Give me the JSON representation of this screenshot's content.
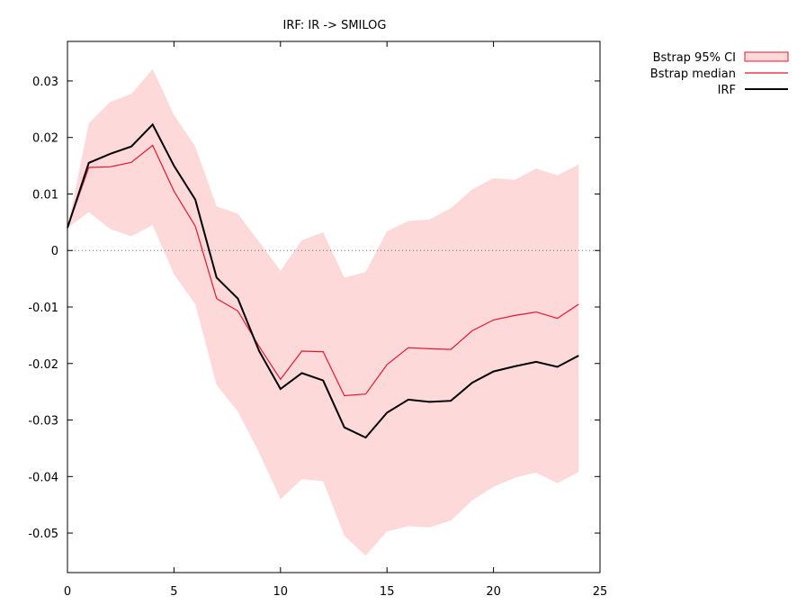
{
  "chart_data": {
    "type": "line",
    "title": "IRF: IR -> SMILOG",
    "xlabel": "",
    "ylabel": "",
    "xlim": [
      0,
      25
    ],
    "ylim": [
      -0.057,
      0.037
    ],
    "x_ticks": [
      0,
      5,
      10,
      15,
      20,
      25
    ],
    "y_ticks": [
      0.03,
      0.02,
      0.01,
      0,
      -0.01,
      -0.02,
      -0.03,
      -0.04,
      -0.05
    ],
    "y_tick_labels": [
      "0.03",
      "0.02",
      "0.01",
      "0",
      "-0.01",
      "-0.02",
      "-0.03",
      "-0.04",
      "-0.05"
    ],
    "zero_line": true,
    "legend_position": "outside-top-right",
    "x": [
      0,
      1,
      2,
      3,
      4,
      5,
      6,
      7,
      8,
      9,
      10,
      11,
      12,
      13,
      14,
      15,
      16,
      17,
      18,
      19,
      20,
      21,
      22,
      23,
      24
    ],
    "series": [
      {
        "name": "Bstrap 95% CI",
        "kind": "band",
        "color": "#fdd9d9",
        "edge_color": "#e8172d",
        "upper": [
          0.004,
          0.0225,
          0.0263,
          0.0277,
          0.0321,
          0.024,
          0.0184,
          0.0078,
          0.0065,
          0.0015,
          -0.0036,
          0.0018,
          0.0032,
          -0.0048,
          -0.0038,
          0.0034,
          0.0052,
          0.0055,
          0.0075,
          0.0108,
          0.0128,
          0.0125,
          0.0145,
          0.0133,
          0.0152
        ],
        "lower": [
          0.004,
          0.0068,
          0.0038,
          0.0025,
          0.0045,
          -0.0042,
          -0.0095,
          -0.0238,
          -0.0285,
          -0.0358,
          -0.044,
          -0.0405,
          -0.0408,
          -0.0505,
          -0.054,
          -0.0497,
          -0.0488,
          -0.049,
          -0.0478,
          -0.0442,
          -0.0418,
          -0.0402,
          -0.0393,
          -0.0412,
          -0.0392
        ]
      },
      {
        "name": "Bstrap median",
        "kind": "line",
        "color": "#e8172d",
        "values": [
          0.004,
          0.0147,
          0.0148,
          0.0156,
          0.0186,
          0.0105,
          0.0043,
          -0.0085,
          -0.0107,
          -0.017,
          -0.0228,
          -0.0178,
          -0.0179,
          -0.0257,
          -0.0254,
          -0.0202,
          -0.0172,
          -0.0174,
          -0.0175,
          -0.0142,
          -0.0123,
          -0.0115,
          -0.0109,
          -0.012,
          -0.0095
        ]
      },
      {
        "name": "IRF",
        "kind": "line",
        "color": "#000000",
        "values": [
          0.004,
          0.0155,
          0.0171,
          0.0184,
          0.0223,
          0.015,
          0.009,
          -0.0048,
          -0.0085,
          -0.0178,
          -0.0245,
          -0.0217,
          -0.023,
          -0.0313,
          -0.0331,
          -0.0287,
          -0.0264,
          -0.0268,
          -0.0266,
          -0.0234,
          -0.0214,
          -0.0205,
          -0.0197,
          -0.0206,
          -0.0186
        ]
      }
    ]
  }
}
